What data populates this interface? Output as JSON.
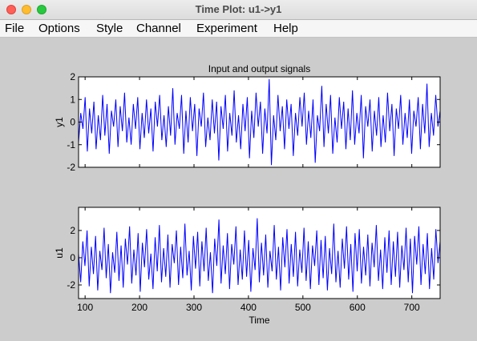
{
  "window": {
    "title": "Time Plot: u1->y1"
  },
  "menu": [
    "File",
    "Options",
    "Style",
    "Channel",
    "Experiment",
    "Help"
  ],
  "chart_data": [
    {
      "type": "line",
      "title": "Input and output signals",
      "ylabel": "y1",
      "xlim": [
        88,
        752
      ],
      "ylim": [
        -2,
        2
      ],
      "yticks": [
        -2,
        -1,
        0,
        1,
        2
      ],
      "color": "#0000ff",
      "series": [
        {
          "values": [
            -0.9,
            0.4,
            -0.3,
            1.1,
            -1.3,
            0.6,
            -0.5,
            0.9,
            -1.2,
            0.3,
            -0.8,
            1.2,
            -0.6,
            0.8,
            -1.4,
            0.5,
            -0.2,
            1.0,
            -1.1,
            0.7,
            -0.4,
            1.3,
            -0.9,
            0.2,
            -1.0,
            0.8,
            -0.3,
            1.1,
            -1.2,
            0.4,
            -0.7,
            1.0,
            -0.5,
            0.6,
            -1.3,
            0.9,
            -0.2,
            1.2,
            -0.8,
            0.3,
            -1.1,
            0.7,
            -0.6,
            1.5,
            -1.0,
            0.4,
            -0.3,
            1.2,
            -1.4,
            0.5,
            -0.9,
            1.1,
            -0.4,
            0.8,
            -1.5,
            0.6,
            -0.2,
            1.3,
            -1.1,
            0.2,
            -0.8,
            1.0,
            -0.5,
            0.9,
            -1.7,
            0.7,
            -0.3,
            1.2,
            -1.3,
            0.4,
            -0.6,
            1.4,
            -0.9,
            0.3,
            -1.2,
            0.8,
            -0.4,
            1.1,
            -1.6,
            0.5,
            -0.7,
            1.3,
            -0.2,
            0.9,
            -1.4,
            0.6,
            -0.5,
            1.9,
            -1.9,
            0.3,
            -0.8,
            1.2,
            -0.4,
            0.7,
            -1.2,
            1.0,
            -0.3,
            0.8,
            -1.5,
            0.4,
            -0.6,
            1.1,
            -0.2,
            1.3,
            -1.0,
            0.5,
            -0.7,
            1.0,
            -1.8,
            0.3,
            -0.4,
            1.6,
            -1.1,
            0.8,
            -0.5,
            1.2,
            -1.4,
            0.2,
            -0.9,
            1.1,
            -0.3,
            0.9,
            -1.2,
            0.6,
            -0.8,
            1.4,
            -1.0,
            0.4,
            -0.5,
            1.2,
            -1.6,
            0.7,
            -0.2,
            1.0,
            -1.3,
            0.5,
            -0.6,
            1.1,
            -1.1,
            0.3,
            -0.9,
            1.3,
            -0.4,
            0.8,
            -1.5,
            0.6,
            -0.3,
            1.2,
            -1.0,
            0.4,
            -0.7,
            1.0,
            -1.4,
            0.5,
            -0.2,
            1.1,
            -1.2,
            0.8,
            -0.5,
            1.7,
            -1.1,
            0.4,
            -0.6,
            1.2,
            -0.2,
            0.5
          ]
        }
      ]
    },
    {
      "type": "line",
      "title": "",
      "xlabel": "Time",
      "ylabel": "u1",
      "xlim": [
        88,
        752
      ],
      "ylim": [
        -3.0,
        3.7
      ],
      "yticks": [
        -2,
        0,
        2
      ],
      "xticks": [
        100,
        200,
        300,
        400,
        500,
        600,
        700
      ],
      "color": "#0000ff",
      "series": [
        {
          "values": [
            0.3,
            -1.8,
            1.2,
            -0.6,
            2.0,
            -2.1,
            0.8,
            -1.2,
            1.6,
            -2.4,
            0.5,
            -0.9,
            2.2,
            -1.5,
            1.0,
            -2.6,
            0.4,
            -1.1,
            1.9,
            -1.7,
            0.9,
            -2.2,
            1.4,
            -0.5,
            2.3,
            -1.9,
            0.6,
            -1.3,
            1.8,
            -2.5,
            1.1,
            -0.7,
            2.1,
            -1.6,
            0.3,
            -2.3,
            1.5,
            -1.0,
            2.4,
            -1.8,
            0.7,
            -1.4,
            1.7,
            -2.2,
            1.0,
            -0.4,
            2.0,
            -2.0,
            0.8,
            -1.5,
            2.5,
            -1.3,
            0.5,
            -2.4,
            1.6,
            -0.8,
            1.9,
            -2.1,
            1.2,
            -1.0,
            2.2,
            -1.7,
            0.4,
            -2.6,
            1.4,
            -0.6,
            2.8,
            -1.9,
            0.9,
            -1.2,
            1.8,
            -2.3,
            1.0,
            -0.5,
            2.3,
            -2.0,
            0.6,
            -1.6,
            2.0,
            -1.4,
            1.3,
            -2.5,
            0.7,
            -0.9,
            2.9,
            -1.8,
            1.1,
            -1.3,
            1.7,
            -2.2,
            0.5,
            -1.0,
            2.4,
            -1.6,
            0.8,
            -2.4,
            1.5,
            -0.7,
            2.1,
            -1.9,
            1.0,
            -1.4,
            1.9,
            -2.1,
            0.6,
            -1.1,
            2.2,
            -1.7,
            1.2,
            -2.3,
            0.9,
            -0.6,
            2.0,
            -2.0,
            1.3,
            -1.5,
            1.6,
            -2.4,
            0.7,
            -1.2,
            2.5,
            -1.8,
            0.5,
            -2.2,
            1.4,
            -0.8,
            2.3,
            -1.6,
            1.0,
            -2.5,
            1.8,
            -1.0,
            2.1,
            -1.9,
            0.8,
            -1.3,
            1.7,
            -2.1,
            1.1,
            -0.7,
            2.4,
            -1.7,
            0.6,
            -2.3,
            1.5,
            -1.1,
            2.0,
            -2.0,
            1.2,
            -1.4,
            1.9,
            -2.2,
            0.9,
            -0.9,
            2.2,
            -1.8,
            1.4,
            -2.6,
            1.6,
            -0.5,
            2.3,
            -2.0,
            1.0,
            -1.2,
            1.8,
            -2.3,
            0.7,
            -1.6,
            2.1,
            -0.4,
            1.2
          ]
        }
      ]
    }
  ]
}
